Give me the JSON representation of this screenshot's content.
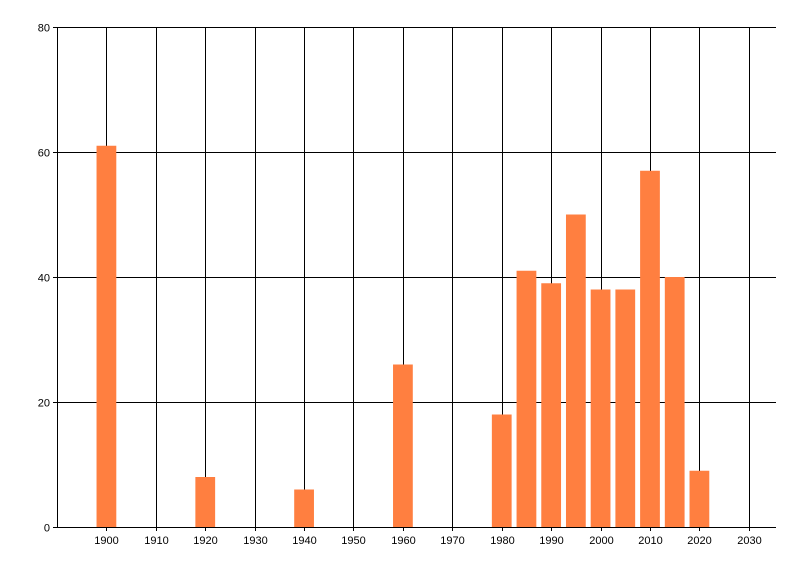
{
  "chart_data": {
    "type": "bar",
    "title": "",
    "xlabel": "",
    "ylabel": "",
    "x": [
      1900,
      1920,
      1940,
      1960,
      1980,
      1985,
      1990,
      1995,
      2000,
      2005,
      2010,
      2015,
      2020
    ],
    "values": [
      61,
      8,
      6,
      26,
      18,
      41,
      39,
      50,
      38,
      38,
      57,
      40,
      9
    ],
    "bar_width_years": 4,
    "xlim": [
      1890,
      2035.5
    ],
    "ylim": [
      0,
      80
    ],
    "xticks": [
      1900,
      1910,
      1920,
      1930,
      1940,
      1950,
      1960,
      1970,
      1980,
      1990,
      2000,
      2010,
      2020,
      2030
    ],
    "yticks": [
      0,
      20,
      40,
      60,
      80
    ],
    "grid": true,
    "legend": "none",
    "bar_color": "#FF7F40"
  }
}
